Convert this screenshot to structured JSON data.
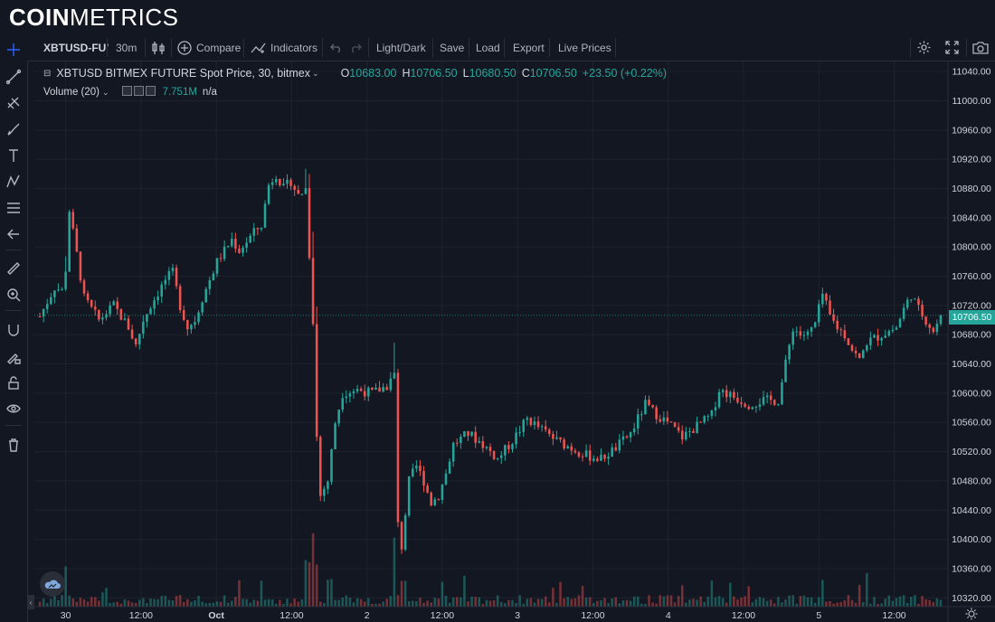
{
  "brand": {
    "part1": "COIN",
    "part2": "METRICS"
  },
  "toolbar": {
    "symbol": "XBTUSD-FU'",
    "interval": "30m",
    "compare": "Compare",
    "indicators": "Indicators",
    "light_dark": "Light/Dark",
    "save": "Save",
    "load": "Load",
    "export": "Export",
    "live_prices": "Live Prices"
  },
  "legend": {
    "title": "XBTUSD BITMEX FUTURE Spot Price, 30, bitmex",
    "o_label": "O",
    "o_value": "10683.00",
    "h_label": "H",
    "h_value": "10706.50",
    "l_label": "L",
    "l_value": "10680.50",
    "c_label": "C",
    "c_value": "10706.50",
    "change": "+23.50 (+0.22%)",
    "volume_label": "Volume (20)",
    "volume_value": "7.751M",
    "volume_na": "n/a"
  },
  "last_price_label": "10706.50",
  "colors": {
    "up": "#26a69a",
    "down": "#ef5350",
    "background": "#131722",
    "grid": "#1e222d"
  },
  "chart_data": {
    "type": "candlestick",
    "symbol": "XBTUSD BITMEX FUTURE Spot Price",
    "interval": "30",
    "price_ylim": [
      10308,
      11055
    ],
    "y_ticks": [
      11040,
      11000,
      10960,
      10920,
      10880,
      10840,
      10800,
      10760,
      10720,
      10680,
      10640,
      10600,
      10560,
      10520,
      10480,
      10440,
      10400,
      10360,
      10320
    ],
    "x_tick_labels": [
      "30",
      "12:00",
      "Oct",
      "12:00",
      "2",
      "12:00",
      "3",
      "12:00",
      "4",
      "12:00",
      "5",
      "12:00"
    ],
    "last_price": 10706.5,
    "price_path": [
      [
        0,
        10705
      ],
      [
        4,
        10745
      ],
      [
        6,
        10740
      ],
      [
        7,
        10770
      ],
      [
        8,
        10850
      ],
      [
        10,
        10790
      ],
      [
        12,
        10730
      ],
      [
        16,
        10700
      ],
      [
        20,
        10720
      ],
      [
        24,
        10690
      ],
      [
        26,
        10665
      ],
      [
        28,
        10700
      ],
      [
        30,
        10720
      ],
      [
        34,
        10755
      ],
      [
        36,
        10765
      ],
      [
        38,
        10720
      ],
      [
        40,
        10690
      ],
      [
        42,
        10700
      ],
      [
        44,
        10730
      ],
      [
        48,
        10780
      ],
      [
        52,
        10810
      ],
      [
        54,
        10795
      ],
      [
        58,
        10820
      ],
      [
        60,
        10830
      ],
      [
        62,
        10885
      ],
      [
        64,
        10900
      ],
      [
        66,
        10880
      ],
      [
        68,
        10890
      ],
      [
        70,
        10870
      ],
      [
        72,
        10880
      ],
      [
        74,
        10700
      ],
      [
        75,
        10540
      ],
      [
        76,
        10460
      ],
      [
        78,
        10480
      ],
      [
        80,
        10560
      ],
      [
        82,
        10600
      ],
      [
        86,
        10605
      ],
      [
        90,
        10600
      ],
      [
        94,
        10610
      ],
      [
        96,
        10625
      ],
      [
        97,
        10420
      ],
      [
        98,
        10390
      ],
      [
        100,
        10480
      ],
      [
        102,
        10500
      ],
      [
        104,
        10480
      ],
      [
        106,
        10450
      ],
      [
        108,
        10460
      ],
      [
        110,
        10490
      ],
      [
        112,
        10530
      ],
      [
        116,
        10545
      ],
      [
        120,
        10530
      ],
      [
        124,
        10510
      ],
      [
        128,
        10535
      ],
      [
        132,
        10565
      ],
      [
        136,
        10550
      ],
      [
        140,
        10535
      ],
      [
        144,
        10525
      ],
      [
        148,
        10515
      ],
      [
        152,
        10510
      ],
      [
        156,
        10525
      ],
      [
        160,
        10545
      ],
      [
        164,
        10585
      ],
      [
        166,
        10575
      ],
      [
        170,
        10560
      ],
      [
        174,
        10540
      ],
      [
        178,
        10555
      ],
      [
        182,
        10570
      ],
      [
        184,
        10605
      ],
      [
        188,
        10595
      ],
      [
        192,
        10585
      ],
      [
        196,
        10590
      ],
      [
        200,
        10590
      ],
      [
        202,
        10640
      ],
      [
        204,
        10690
      ],
      [
        206,
        10680
      ],
      [
        208,
        10680
      ],
      [
        210,
        10695
      ],
      [
        212,
        10735
      ],
      [
        214,
        10705
      ],
      [
        216,
        10690
      ],
      [
        218,
        10680
      ],
      [
        220,
        10660
      ],
      [
        222,
        10645
      ],
      [
        224,
        10670
      ],
      [
        228,
        10680
      ],
      [
        232,
        10690
      ],
      [
        234,
        10715
      ],
      [
        236,
        10735
      ],
      [
        238,
        10715
      ],
      [
        240,
        10700
      ],
      [
        242,
        10685
      ],
      [
        243,
        10695
      ],
      [
        244,
        10706.5
      ]
    ]
  }
}
